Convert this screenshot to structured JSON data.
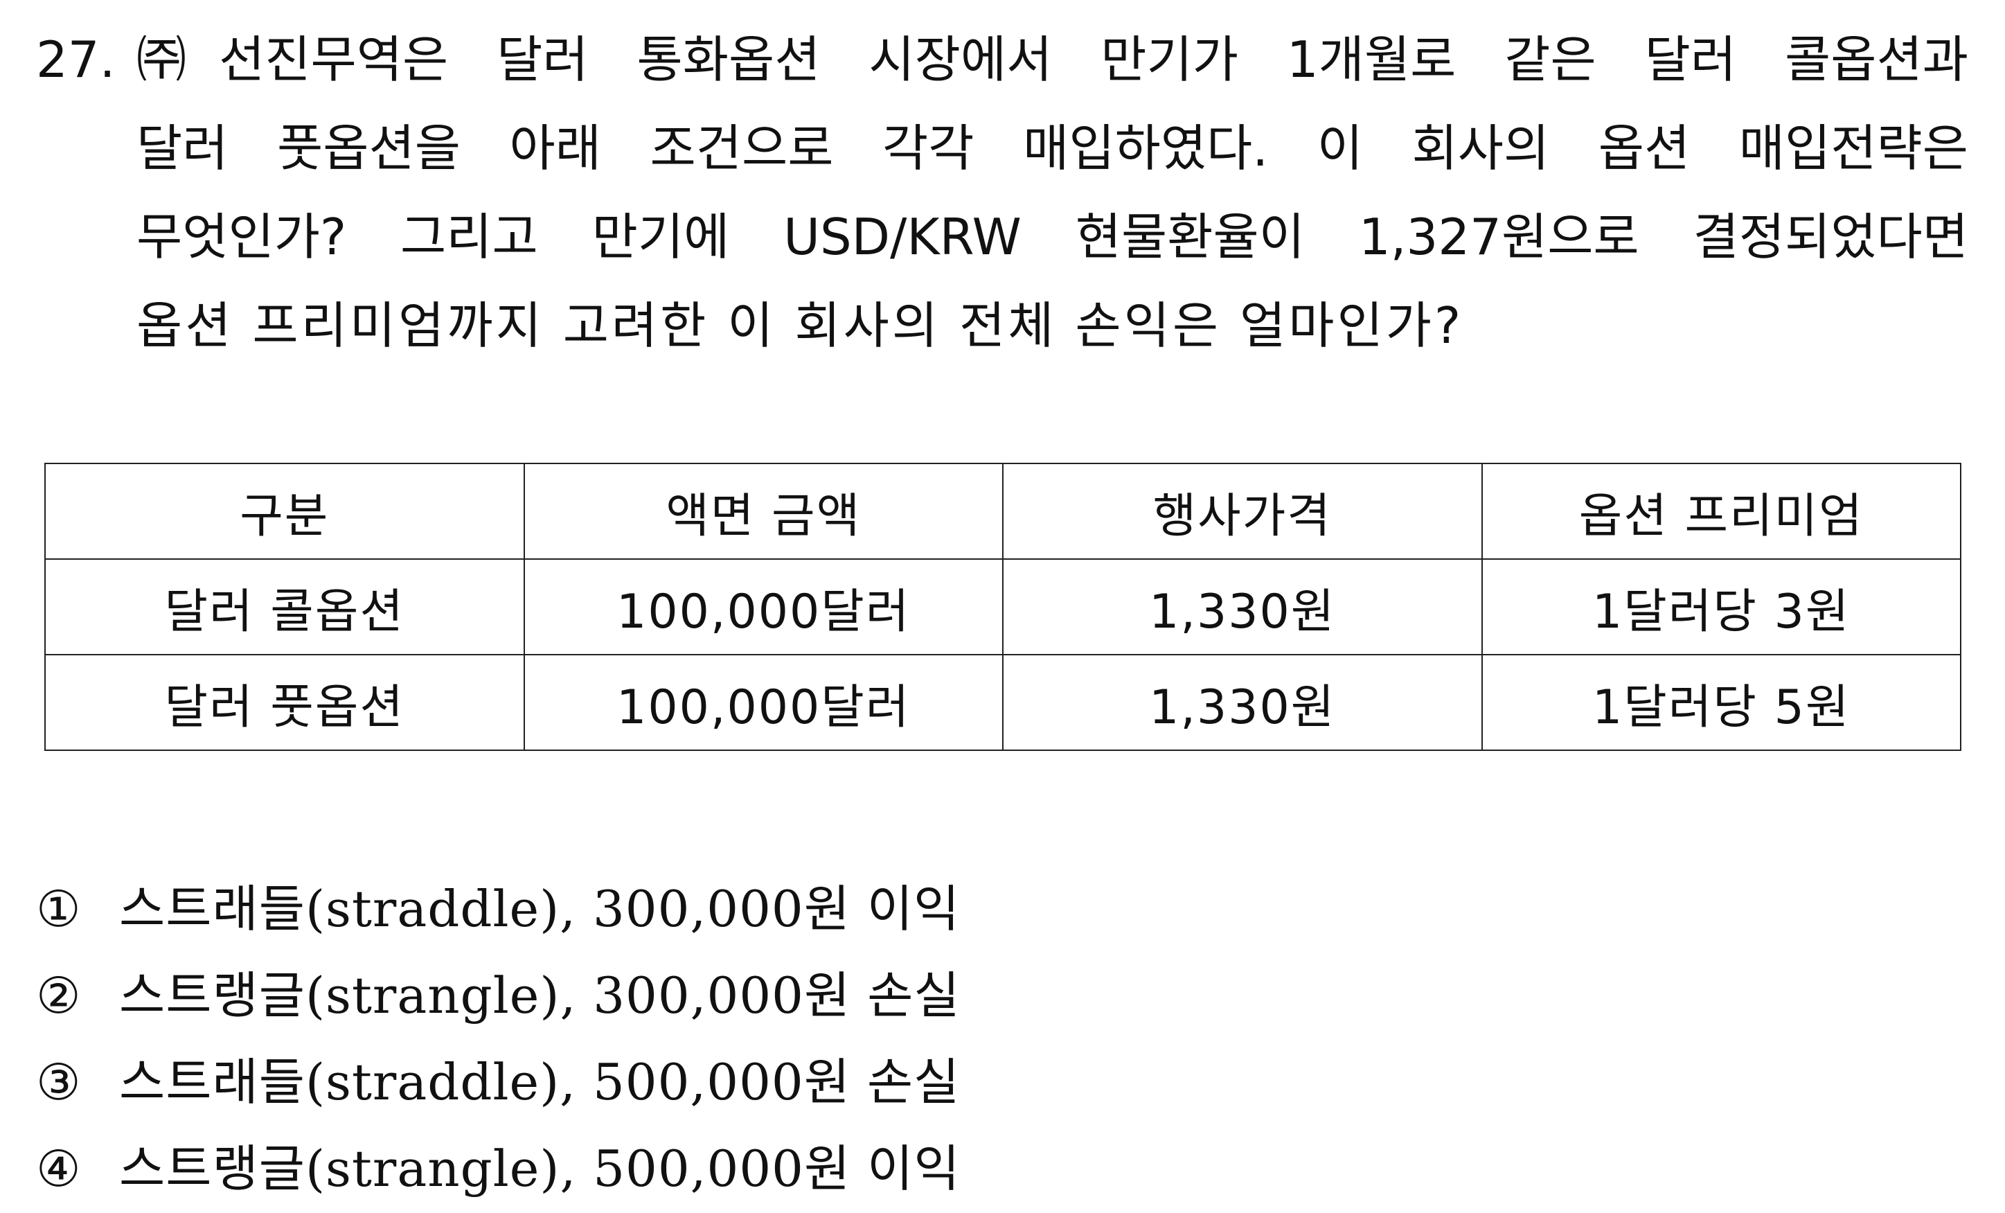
{
  "question": {
    "number": "27.",
    "lines": [
      "㈜선진무역은 달러 통화옵션 시장에서 만기가 1개월로 같은 달러 콜옵션과",
      "달러 풋옵션을 아래 조건으로 각각 매입하였다. 이 회사의 옵션 매입전략은",
      "무엇인가? 그리고 만기에 USD/KRW 현물환율이 1,327원으로 결정되었다면",
      "옵션 프리미엄까지 고려한 이 회사의 전체 손익은 얼마인가?"
    ]
  },
  "table": {
    "headers": [
      "구분",
      "액면 금액",
      "행사가격",
      "옵션 프리미엄"
    ],
    "rows": [
      [
        "달러 콜옵션",
        "100,000달러",
        "1,330원",
        "1달러당 3원"
      ],
      [
        "달러 풋옵션",
        "100,000달러",
        "1,330원",
        "1달러당 5원"
      ]
    ]
  },
  "options": [
    {
      "marker": "①",
      "text": "스트래들(straddle), 300,000원 이익"
    },
    {
      "marker": "②",
      "text": "스트랭글(strangle), 300,000원 손실"
    },
    {
      "marker": "③",
      "text": "스트래들(straddle), 500,000원 손실"
    },
    {
      "marker": "④",
      "text": "스트랭글(strangle), 500,000원 이익"
    }
  ]
}
